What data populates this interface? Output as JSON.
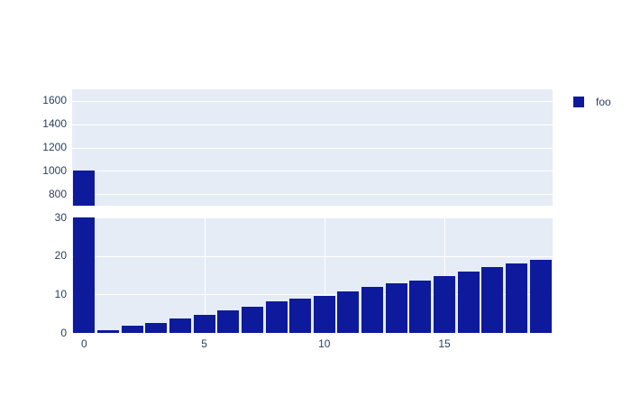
{
  "colors": {
    "paper": "#ffffff",
    "plot_background": "#e5ecf6",
    "gridline": "#ffffff",
    "bar": "#0d1a9c",
    "tick_text": "#2a3f5f"
  },
  "legend": {
    "items": [
      {
        "label": "foo",
        "color": "#0d1a9c"
      }
    ]
  },
  "chart_data": {
    "type": "bar",
    "title": "",
    "xlabel": "",
    "ylabel": "",
    "legend_position": "top-right",
    "grid": true,
    "x": [
      0,
      1,
      2,
      3,
      4,
      5,
      6,
      7,
      8,
      9,
      10,
      11,
      12,
      13,
      14,
      15,
      16,
      17,
      18,
      19
    ],
    "series": [
      {
        "name": "foo",
        "values": [
          1000,
          0.6,
          1.8,
          2.6,
          3.7,
          4.7,
          5.9,
          6.7,
          8.1,
          8.8,
          9.7,
          10.8,
          11.9,
          12.9,
          13.7,
          14.8,
          15.9,
          17.0,
          18.1,
          19.0
        ]
      }
    ],
    "xlim": [
      -0.5,
      19.5
    ],
    "xticks": [
      0,
      5,
      10,
      15
    ],
    "subplots": [
      {
        "position": "top",
        "ylim": [
          700,
          1700
        ],
        "yticks": [
          800,
          1000,
          1200,
          1400,
          1600
        ],
        "show_x_grid": false,
        "show_x_ticklabels": false
      },
      {
        "position": "bottom",
        "ylim": [
          0,
          30
        ],
        "yticks": [
          0,
          10,
          20,
          30
        ],
        "show_x_grid": true,
        "show_x_ticklabels": true
      }
    ]
  }
}
